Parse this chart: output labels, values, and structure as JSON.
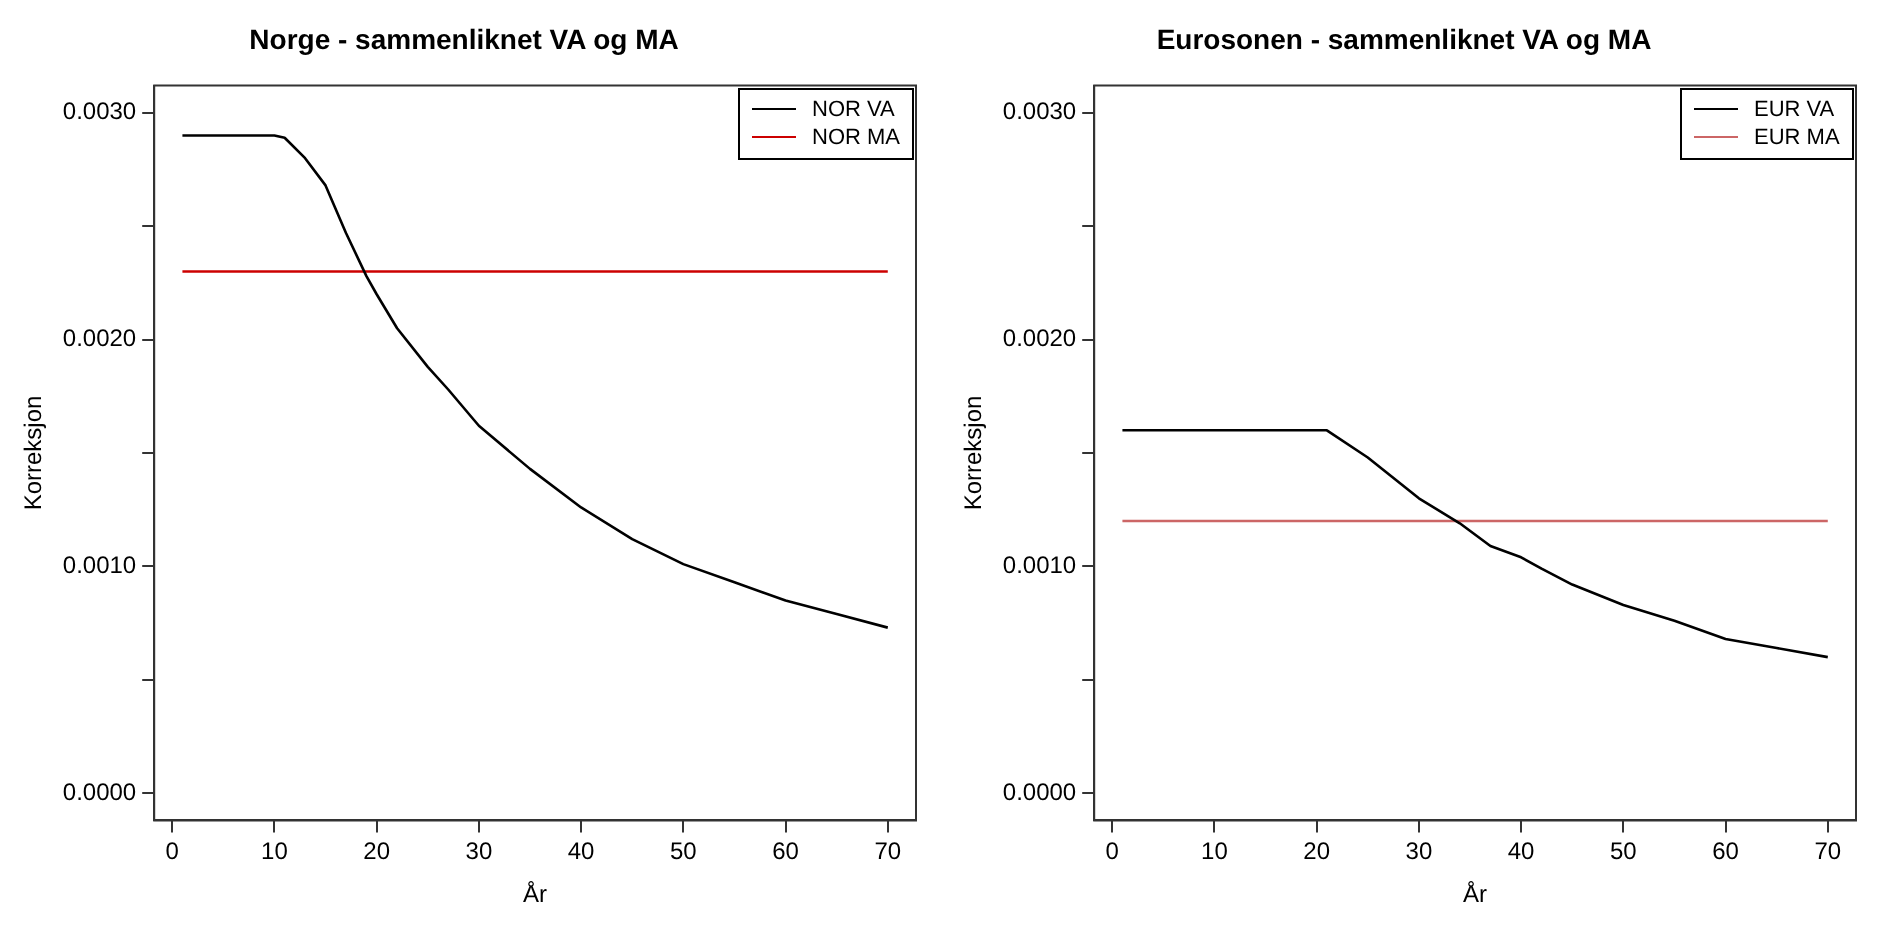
{
  "chart_data": [
    {
      "type": "line",
      "title": "Norge - sammenliknet VA og MA",
      "xlabel": "År",
      "ylabel": "Korreksjon",
      "series": [
        {
          "name": "NOR VA",
          "color": "#000000",
          "x": [
            1,
            10,
            11,
            13,
            15,
            17,
            19,
            20,
            22,
            25,
            27,
            30,
            35,
            40,
            45,
            50,
            55,
            60,
            65,
            70
          ],
          "values": [
            0.0029,
            0.0029,
            0.00289,
            0.0028,
            0.00268,
            0.00247,
            0.00228,
            0.0022,
            0.00205,
            0.00188,
            0.00178,
            0.00162,
            0.00143,
            0.00126,
            0.00112,
            0.00101,
            0.00093,
            0.00085,
            0.00079,
            0.00073
          ]
        },
        {
          "name": "NOR MA",
          "color": "#cc0000",
          "x": [
            1,
            70
          ],
          "values": [
            0.0023,
            0.0023
          ]
        }
      ],
      "xlim": [
        -1.76,
        72.76
      ],
      "ylim": [
        -0.00012,
        0.00312
      ],
      "xticks": [
        0,
        10,
        20,
        30,
        40,
        50,
        60,
        70
      ],
      "yticks": [
        {
          "value": 0,
          "label": "0.0000"
        },
        {
          "value": 0.0005,
          "label": null
        },
        {
          "value": 0.001,
          "label": "0.0010"
        },
        {
          "value": 0.0015,
          "label": null
        },
        {
          "value": 0.002,
          "label": "0.0020"
        },
        {
          "value": 0.0025,
          "label": null
        },
        {
          "value": 0.003,
          "label": "0.0030"
        }
      ],
      "legend": "top right"
    },
    {
      "type": "line",
      "title": "Eurosonen - sammenliknet VA og MA",
      "xlabel": "År",
      "ylabel": "Korreksjon",
      "series": [
        {
          "name": "EUR VA",
          "color": "#000000",
          "x": [
            1,
            20,
            21,
            25,
            30,
            34,
            37,
            40,
            42,
            45,
            50,
            55,
            60,
            65,
            70
          ],
          "values": [
            0.0016,
            0.0016,
            0.0016,
            0.00148,
            0.0013,
            0.00119,
            0.00109,
            0.00104,
            0.00099,
            0.00092,
            0.00083,
            0.00076,
            0.00068,
            0.00064,
            0.0006
          ]
        },
        {
          "name": "EUR MA",
          "color": "#cc6666",
          "x": [
            1,
            70
          ],
          "values": [
            0.0012,
            0.0012
          ]
        }
      ],
      "xlim": [
        -1.76,
        72.76
      ],
      "ylim": [
        -0.00012,
        0.00312
      ],
      "xticks": [
        0,
        10,
        20,
        30,
        40,
        50,
        60,
        70
      ],
      "yticks": [
        {
          "value": 0,
          "label": "0.0000"
        },
        {
          "value": 0.0005,
          "label": null
        },
        {
          "value": 0.001,
          "label": "0.0010"
        },
        {
          "value": 0.0015,
          "label": null
        },
        {
          "value": 0.002,
          "label": "0.0020"
        },
        {
          "value": 0.0025,
          "label": null
        },
        {
          "value": 0.003,
          "label": "0.0030"
        }
      ],
      "legend": "top right"
    }
  ]
}
